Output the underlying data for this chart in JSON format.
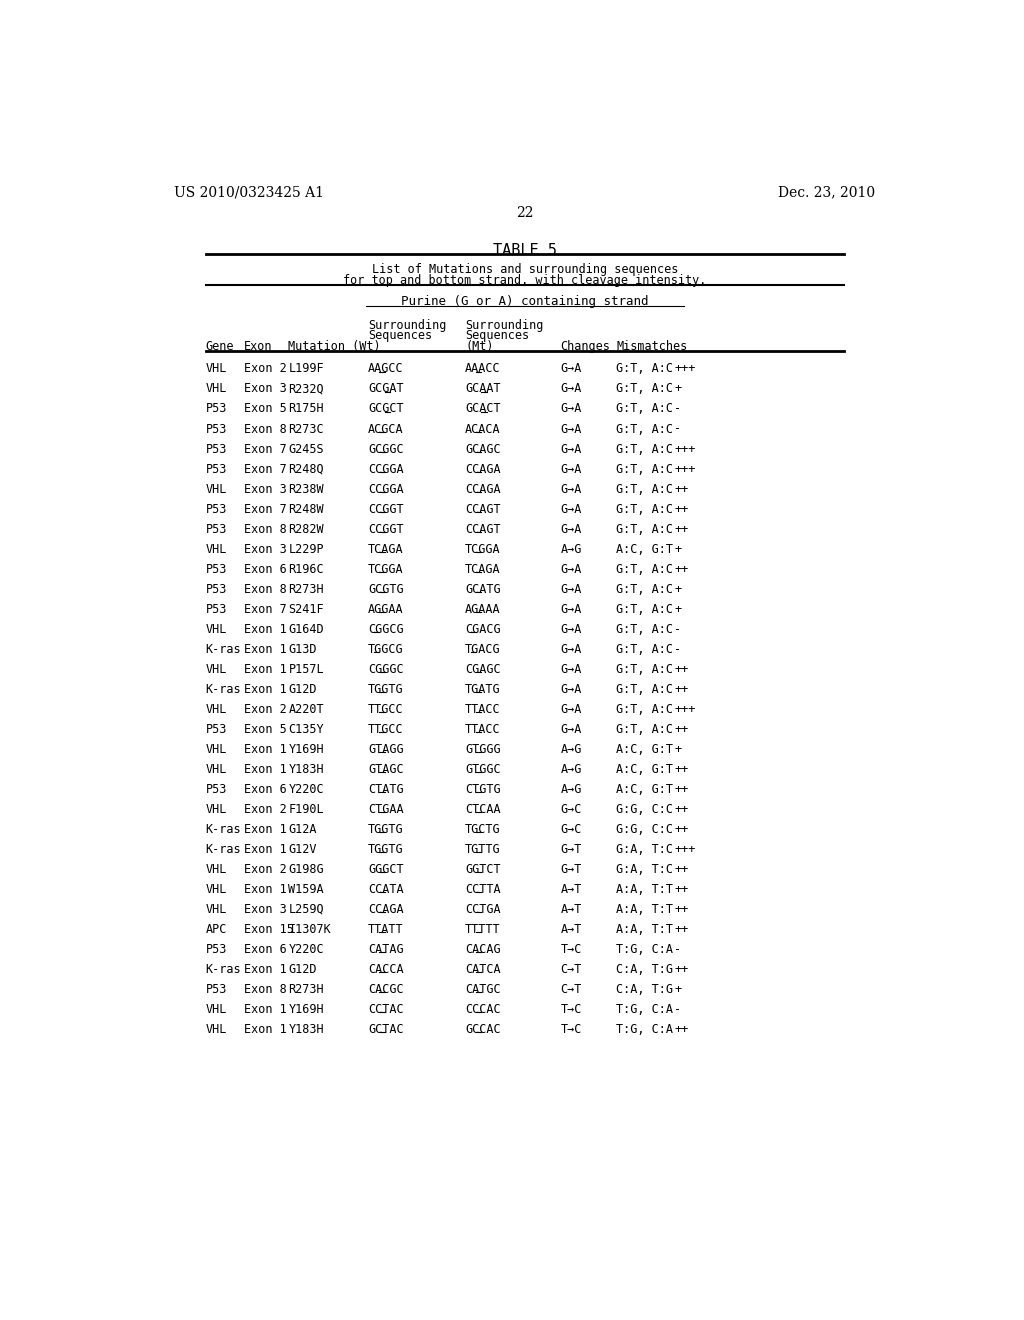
{
  "header_left": "US 2010/0323425 A1",
  "header_right": "Dec. 23, 2010",
  "page_number": "22",
  "table_title": "TABLE 5",
  "table_subtitle1": "List of Mutations and surrounding sequences",
  "table_subtitle2": "for top and bottom strand, with cleavage intensity.",
  "section_header": "Purine (G or A) containing strand",
  "bg_color": "#ffffff",
  "text_color": "#000000",
  "font_size": 8.5,
  "header_font_size": 10,
  "title_font_size": 11,
  "rows": [
    [
      "VHL",
      "Exon 2",
      "L199F",
      "AAGCC",
      "AAACC",
      "G→A",
      "G:T, A:C",
      "+++",
      2,
      2
    ],
    [
      "VHL",
      "Exon 3",
      "R232Q",
      "GCGAT",
      "GCAAT",
      "G→A",
      "G:T, A:C",
      "+",
      3,
      3
    ],
    [
      "P53",
      "Exon 5",
      "R175H",
      "GCGCT",
      "GCACT",
      "G→A",
      "G:T, A:C",
      "-",
      3,
      3
    ],
    [
      "P53",
      "Exon 8",
      "R273C",
      "ACGCA",
      "ACACA",
      "G→A",
      "G:T, A:C",
      "-",
      2,
      2
    ],
    [
      "P53",
      "Exon 7",
      "G245S",
      "GCGGC",
      "GCAGC",
      "G→A",
      "G:T, A:C",
      "+++",
      2,
      2
    ],
    [
      "P53",
      "Exon 7",
      "R248Q",
      "CCGGA",
      "CCAGA",
      "G→A",
      "G:T, A:C",
      "+++",
      2,
      2
    ],
    [
      "VHL",
      "Exon 3",
      "R238W",
      "CCGGA",
      "CCAGA",
      "G→A",
      "G:T, A:C",
      "++",
      2,
      2
    ],
    [
      "P53",
      "Exon 7",
      "R248W",
      "CCGGT",
      "CCAGT",
      "G→A",
      "G:T, A:C",
      "++",
      2,
      2
    ],
    [
      "P53",
      "Exon 8",
      "R282W",
      "CCGGT",
      "CCAGT",
      "G→A",
      "G:T, A:C",
      "++",
      2,
      2
    ],
    [
      "VHL",
      "Exon 3",
      "L229P",
      "TCAGA",
      "TCGGA",
      "A→G",
      "A:C, G:T",
      "+",
      2,
      2
    ],
    [
      "P53",
      "Exon 6",
      "R196C",
      "TCGGA",
      "TCAGA",
      "G→A",
      "G:T, A:C",
      "++",
      2,
      2
    ],
    [
      "P53",
      "Exon 8",
      "R273H",
      "GCGTG",
      "GCATG",
      "G→A",
      "G:T, A:C",
      "+",
      2,
      2
    ],
    [
      "P53",
      "Exon 7",
      "S241F",
      "AGGAA",
      "AGAAA",
      "G→A",
      "G:T, A:C",
      "+",
      2,
      2
    ],
    [
      "VHL",
      "Exon 1",
      "G164D",
      "CGGCG",
      "CGACG",
      "G→A",
      "G:T, A:C",
      "-",
      1,
      1
    ],
    [
      "K-ras",
      "Exon 1",
      "G13D",
      "TGGCG",
      "TGACG",
      "G→A",
      "G:T, A:C",
      "-",
      1,
      1
    ],
    [
      "VHL",
      "Exon 1",
      "P157L",
      "CGGGC",
      "CGAGC",
      "G→A",
      "G:T, A:C",
      "++",
      2,
      2
    ],
    [
      "K-ras",
      "Exon 1",
      "G12D",
      "TGGTG",
      "TGATG",
      "G→A",
      "G:T, A:C",
      "++",
      2,
      2
    ],
    [
      "VHL",
      "Exon 2",
      "A220T",
      "TTGCC",
      "TTACC",
      "G→A",
      "G:T, A:C",
      "+++",
      2,
      2
    ],
    [
      "P53",
      "Exon 5",
      "C135Y",
      "TTGCC",
      "TTACC",
      "G→A",
      "G:T, A:C",
      "++",
      2,
      2
    ],
    [
      "VHL",
      "Exon 1",
      "Y169H",
      "GTAGG",
      "GTGGG",
      "A→G",
      "A:C, G:T",
      "+",
      2,
      2
    ],
    [
      "VHL",
      "Exon 1",
      "Y183H",
      "GTAGC",
      "GTGGC",
      "A→G",
      "A:C, G:T",
      "++",
      2,
      2
    ],
    [
      "P53",
      "Exon 6",
      "Y220C",
      "CTATG",
      "CTGTG",
      "A→G",
      "A:C, G:T",
      "++",
      2,
      2
    ],
    [
      "VHL",
      "Exon 2",
      "F190L",
      "CTGAA",
      "CTCAA",
      "G→C",
      "G:G, C:C",
      "++",
      2,
      2
    ],
    [
      "K-ras",
      "Exon 1",
      "G12A",
      "TGGTG",
      "TGCTG",
      "G→C",
      "G:G, C:C",
      "++",
      2,
      2
    ],
    [
      "K-ras",
      "Exon 1",
      "G12V",
      "TGGTG",
      "TGTTG",
      "G→T",
      "G:A, T:C",
      "+++",
      2,
      2
    ],
    [
      "VHL",
      "Exon 2",
      "G198G",
      "GGGCT",
      "GGTCT",
      "G→T",
      "G:A, T:C",
      "++",
      2,
      2
    ],
    [
      "VHL",
      "Exon 1",
      "W159A",
      "CCATA",
      "CCTTA",
      "A→T",
      "A:A, T:T",
      "++",
      2,
      2
    ],
    [
      "VHL",
      "Exon 3",
      "L259Q",
      "CCAGA",
      "CCTGA",
      "A→T",
      "A:A, T:T",
      "++",
      2,
      2
    ],
    [
      "APC",
      "Exon 15",
      "I1307K",
      "TTATT",
      "TTTTT",
      "A→T",
      "A:A, T:T",
      "++",
      2,
      2
    ],
    [
      "P53",
      "Exon 6",
      "Y220C",
      "CATAG",
      "CACAG",
      "T→C",
      "T:G, C:A",
      "-",
      2,
      2
    ],
    [
      "K-ras",
      "Exon 1",
      "G12D",
      "CACCA",
      "CATCA",
      "C→T",
      "C:A, T:G",
      "++",
      2,
      2
    ],
    [
      "P53",
      "Exon 8",
      "R273H",
      "CACGC",
      "CATGC",
      "C→T",
      "C:A, T:G",
      "+",
      2,
      2
    ],
    [
      "VHL",
      "Exon 1",
      "Y169H",
      "CCTAC",
      "CCCAC",
      "T→C",
      "T:G, C:A",
      "-",
      2,
      2
    ],
    [
      "VHL",
      "Exon 1",
      "Y183H",
      "GCTAC",
      "GCCAC",
      "T→C",
      "T:G, C:A",
      "++",
      2,
      2
    ]
  ]
}
